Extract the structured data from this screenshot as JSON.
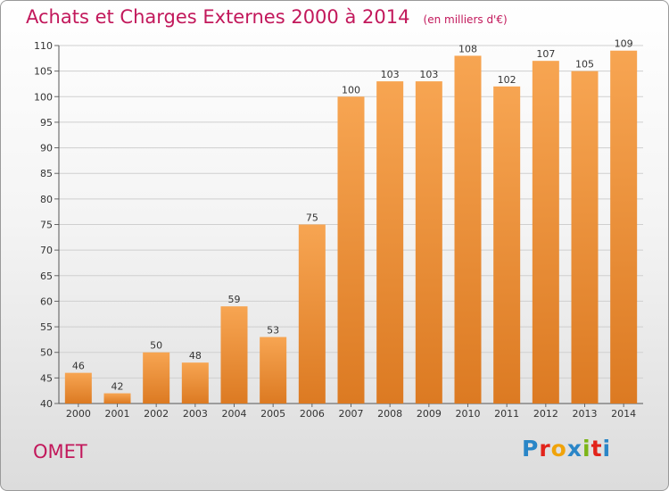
{
  "chart_data": {
    "type": "bar",
    "title": "Achats et Charges Externes 2000 à 2014",
    "subtitle": "(en milliers d'€)",
    "categories": [
      "2000",
      "2001",
      "2002",
      "2003",
      "2004",
      "2005",
      "2006",
      "2007",
      "2008",
      "2009",
      "2010",
      "2011",
      "2012",
      "2013",
      "2014"
    ],
    "values": [
      46,
      42,
      50,
      48,
      59,
      53,
      75,
      100,
      103,
      103,
      108,
      102,
      107,
      105,
      109
    ],
    "ylim": [
      40,
      110
    ],
    "yticks": [
      40,
      45,
      50,
      55,
      60,
      65,
      70,
      75,
      80,
      85,
      90,
      95,
      100,
      105,
      110
    ],
    "grid": true,
    "bar_color": "#f0953f",
    "xlabel": "",
    "ylabel": ""
  },
  "footer": {
    "commune": "OMET",
    "logo": "Proxiti",
    "logo_colors": [
      "#2a86c7",
      "#e2231a",
      "#f0a30a",
      "#2a86c7",
      "#7cb518",
      "#e2231a",
      "#2a86c7"
    ]
  },
  "colors": {
    "title": "#c2185b",
    "grid": "#cfcfcf"
  }
}
